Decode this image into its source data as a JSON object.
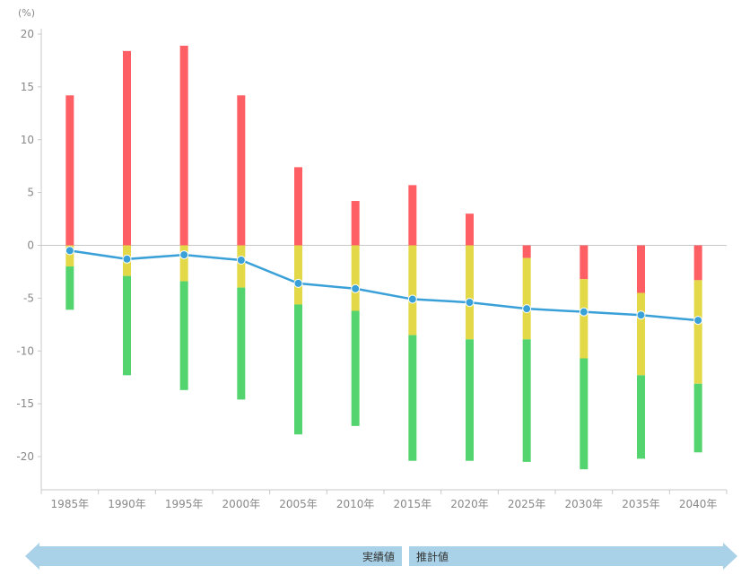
{
  "chart_data": {
    "type": "bar",
    "unit_label": "(%)",
    "categories": [
      "1985年",
      "1990年",
      "1995年",
      "2000年",
      "2005年",
      "2010年",
      "2015年",
      "2020年",
      "2025年",
      "2030年",
      "2035年",
      "2040年"
    ],
    "ylim": [
      -23,
      21
    ],
    "yticks": [
      20,
      15,
      10,
      5,
      0,
      -5,
      -10,
      -15,
      -20
    ],
    "stacked": true,
    "series": [
      {
        "color": "#fd5f64",
        "values": [
          14.2,
          18.4,
          18.9,
          14.2,
          7.4,
          4.2,
          5.7,
          3.0,
          -1.2,
          -3.2,
          -4.5,
          -3.3
        ]
      },
      {
        "color": "#e3d948",
        "values": [
          -2.0,
          -2.9,
          -3.4,
          -4.0,
          -5.6,
          -6.2,
          -8.5,
          -8.9,
          -7.7,
          -7.5,
          -7.8,
          -9.8
        ]
      },
      {
        "color": "#54d46e",
        "values": [
          -4.1,
          -9.4,
          -10.3,
          -10.6,
          -12.3,
          -10.9,
          -11.9,
          -11.5,
          -11.6,
          -10.5,
          -7.9,
          -6.5
        ]
      }
    ],
    "line": {
      "color": "#3aa0d8",
      "values": [
        -0.5,
        -1.3,
        -0.9,
        -1.4,
        -3.6,
        -4.1,
        -5.1,
        -5.4,
        -6.0,
        -6.3,
        -6.6,
        -7.1
      ]
    },
    "grid": false
  },
  "timeline": {
    "actual_label": "実績値",
    "forecast_label": "推計値",
    "color": "#a9d1e7"
  }
}
